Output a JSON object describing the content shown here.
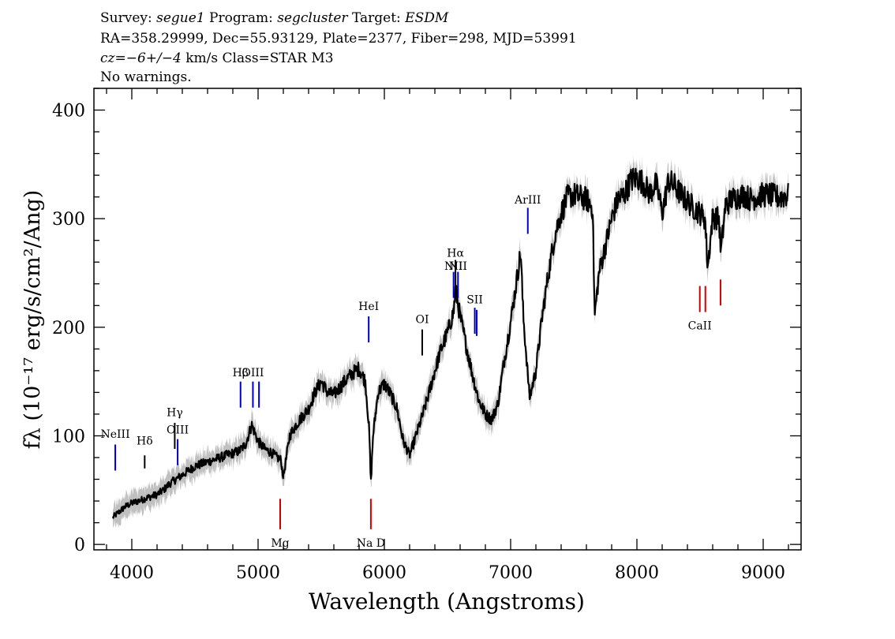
{
  "header": {
    "line1": {
      "survey_label": "Survey: ",
      "survey": "segue1",
      "program_label": " Program: ",
      "program": "segcluster",
      "target_label": " Target: ",
      "target": "ESDM"
    },
    "line2": "RA=358.29999, Dec=55.93129, Plate=2377, Fiber=298, MJD=53991",
    "line3": {
      "cz_label": "cz",
      "cz_eq": "=",
      "cz_value": "−6+/−4",
      "cz_unit": " km/s Class=STAR M3"
    },
    "line4": "No warnings."
  },
  "chart_data": {
    "type": "line",
    "title": "",
    "xlabel": "Wavelength (Angstroms)",
    "ylabel": "fλ (10⁻¹⁷ erg/s/cm²/Ang)",
    "xlim": [
      3700,
      9300
    ],
    "ylim": [
      -5,
      420
    ],
    "x_ticks": [
      4000,
      5000,
      6000,
      7000,
      8000,
      9000
    ],
    "y_ticks": [
      0,
      100,
      200,
      300,
      400
    ],
    "x_tick_labels": [
      "4000",
      "5000",
      "6000",
      "7000",
      "8000",
      "9000"
    ],
    "y_tick_labels": [
      "0",
      "100",
      "200",
      "300",
      "400"
    ],
    "series": [
      {
        "name": "flux",
        "color": "#000000",
        "x": [
          3850,
          3900,
          3950,
          4000,
          4050,
          4100,
          4150,
          4200,
          4250,
          4300,
          4350,
          4400,
          4450,
          4500,
          4550,
          4600,
          4650,
          4700,
          4750,
          4800,
          4850,
          4900,
          4950,
          5000,
          5050,
          5100,
          5150,
          5180,
          5200,
          5250,
          5300,
          5350,
          5400,
          5450,
          5500,
          5550,
          5600,
          5650,
          5700,
          5750,
          5800,
          5850,
          5880,
          5893,
          5910,
          5950,
          6000,
          6050,
          6100,
          6150,
          6200,
          6250,
          6300,
          6350,
          6400,
          6450,
          6500,
          6550,
          6563,
          6600,
          6650,
          6700,
          6750,
          6800,
          6850,
          6900,
          6950,
          7000,
          7050,
          7080,
          7100,
          7150,
          7200,
          7250,
          7300,
          7350,
          7400,
          7450,
          7500,
          7550,
          7600,
          7650,
          7665,
          7700,
          7750,
          7800,
          7850,
          7900,
          7950,
          8000,
          8050,
          8100,
          8150,
          8180,
          8200,
          8250,
          8300,
          8350,
          8400,
          8450,
          8500,
          8540,
          8560,
          8600,
          8650,
          8665,
          8700,
          8750,
          8800,
          8850,
          8900,
          8950,
          9000,
          9050,
          9100,
          9150,
          9200
        ],
        "y": [
          25,
          30,
          35,
          38,
          40,
          42,
          44,
          46,
          50,
          56,
          60,
          64,
          68,
          72,
          74,
          76,
          78,
          80,
          82,
          84,
          86,
          92,
          110,
          95,
          88,
          85,
          80,
          78,
          62,
          100,
          110,
          118,
          125,
          140,
          150,
          140,
          138,
          145,
          152,
          158,
          162,
          150,
          105,
          55,
          100,
          140,
          148,
          138,
          125,
          95,
          82,
          100,
          118,
          138,
          160,
          180,
          195,
          215,
          235,
          210,
          182,
          155,
          132,
          120,
          115,
          130,
          170,
          205,
          245,
          270,
          210,
          135,
          160,
          210,
          250,
          285,
          305,
          320,
          322,
          320,
          318,
          310,
          210,
          250,
          275,
          300,
          318,
          322,
          335,
          338,
          333,
          323,
          332,
          318,
          305,
          335,
          330,
          322,
          316,
          310,
          305,
          300,
          255,
          302,
          300,
          268,
          312,
          318,
          320,
          322,
          318,
          320,
          322,
          322,
          320,
          320,
          322
        ]
      }
    ],
    "error_band": {
      "name": "flux error",
      "color": "#c0c0c0",
      "half_width": 10
    },
    "line_markers": [
      {
        "label": "NeIII",
        "x": 3869,
        "color": "#0000cc",
        "y_lo": 68,
        "y_hi": 92,
        "label_y": 98
      },
      {
        "label": "Hδ",
        "x": 4102,
        "color": "#000000",
        "y_lo": 70,
        "y_hi": 82,
        "label_y": 92
      },
      {
        "label": "Hγ",
        "x": 4340,
        "color": "#000000",
        "y_lo": 88,
        "y_hi": 112,
        "label_y": 118
      },
      {
        "label": "OIII",
        "x": 4363,
        "color": "#0000cc",
        "y_lo": 73,
        "y_hi": 97,
        "label_y": 102
      },
      {
        "label": "Hβ",
        "x": 4861,
        "color": "#0000cc",
        "y_lo": 126,
        "y_hi": 150,
        "label_y": 155
      },
      {
        "label": "OIII",
        "x": 4959,
        "color": "#0000cc",
        "y_lo": 126,
        "y_hi": 150,
        "label_y": 155
      },
      {
        "label": "",
        "x": 5007,
        "color": "#0000cc",
        "y_lo": 126,
        "y_hi": 150,
        "label_y": 155
      },
      {
        "label": "Mg",
        "x": 5175,
        "color": "#cc0000",
        "y_lo": 14,
        "y_hi": 42,
        "label_y": -2
      },
      {
        "label": "HeI",
        "x": 5876,
        "color": "#0000cc",
        "y_lo": 186,
        "y_hi": 210,
        "label_y": 216
      },
      {
        "label": "Na D",
        "x": 5893,
        "color": "#cc0000",
        "y_lo": 14,
        "y_hi": 42,
        "label_y": -2
      },
      {
        "label": "OI",
        "x": 6300,
        "color": "#000000",
        "y_lo": 174,
        "y_hi": 198,
        "label_y": 204
      },
      {
        "label": "NII",
        "x": 6548,
        "color": "#0000cc",
        "y_lo": 227,
        "y_hi": 251,
        "label_y": 253
      },
      {
        "label": "Hα",
        "x": 6563,
        "color": "#000000",
        "y_lo": 235,
        "y_hi": 262,
        "label_y": 265
      },
      {
        "label": "NII",
        "x": 6583,
        "color": "#0000cc",
        "y_lo": 227,
        "y_hi": 251,
        "label_y": 253
      },
      {
        "label": "SII",
        "x": 6716,
        "color": "#0000cc",
        "y_lo": 194,
        "y_hi": 218,
        "label_y": 222
      },
      {
        "label": "",
        "x": 6731,
        "color": "#0000cc",
        "y_lo": 192,
        "y_hi": 216,
        "label_y": 222
      },
      {
        "label": "ArIII",
        "x": 7136,
        "color": "#0000cc",
        "y_lo": 286,
        "y_hi": 310,
        "label_y": 314
      },
      {
        "label": "CaII",
        "x": 8498,
        "color": "#cc0000",
        "y_lo": 214,
        "y_hi": 238,
        "label_y": 198
      },
      {
        "label": "",
        "x": 8542,
        "color": "#cc0000",
        "y_lo": 214,
        "y_hi": 238,
        "label_y": 198
      },
      {
        "label": "",
        "x": 8662,
        "color": "#cc0000",
        "y_lo": 220,
        "y_hi": 244,
        "label_y": 198
      }
    ]
  }
}
